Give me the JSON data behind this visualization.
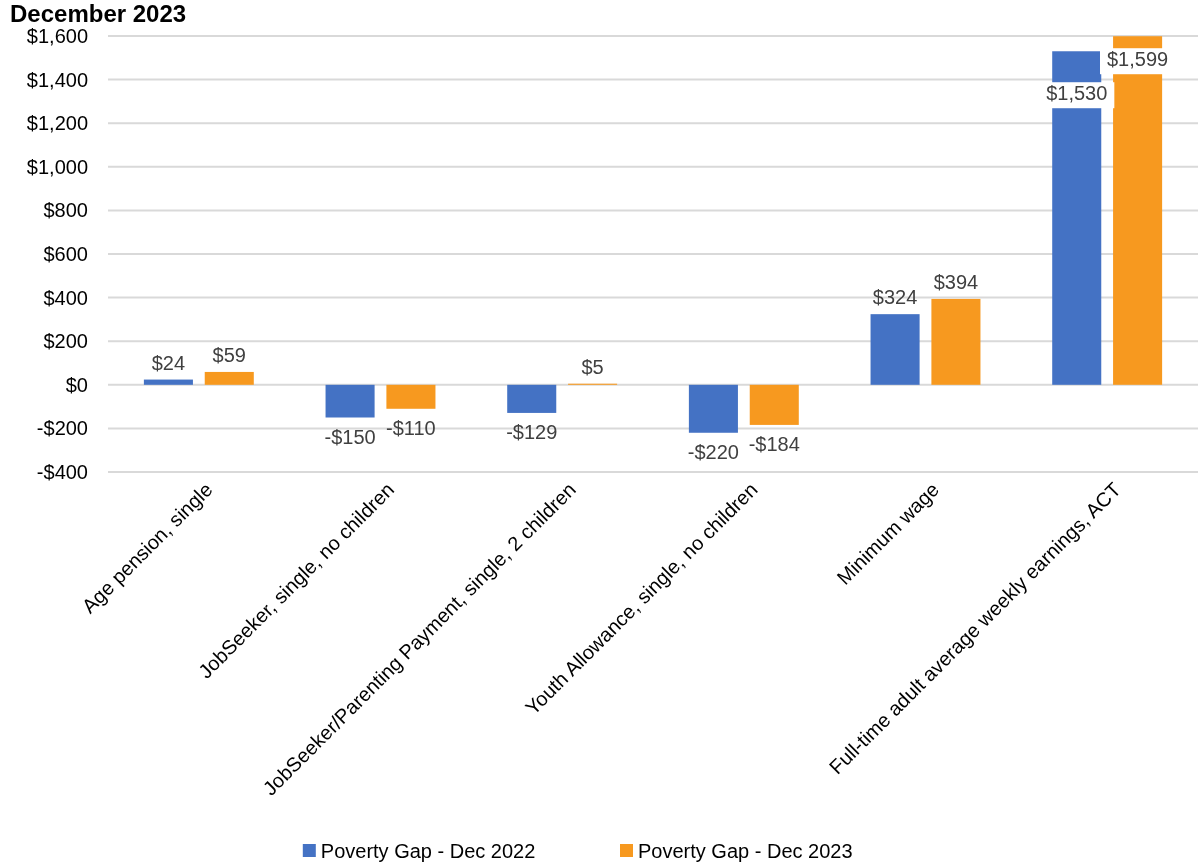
{
  "chart_data": {
    "type": "bar",
    "title": "December 2023",
    "categories": [
      "Age pension, single",
      "JobSeeker, single, no children",
      "JobSeeker/Parenting Payment, single, 2 children",
      "Youth Allowance, single, no children",
      "Minimum wage",
      "Full-time adult average weekly earnings, ACT"
    ],
    "series": [
      {
        "name": "Poverty Gap - Dec 2022",
        "color": "#4472c4",
        "values": [
          24,
          -150,
          -129,
          -220,
          324,
          1530
        ],
        "value_labels": [
          "$24",
          "-$150",
          "-$129",
          "-$220",
          "$324",
          "$1,530"
        ]
      },
      {
        "name": "Poverty Gap - Dec 2023",
        "color": "#f7991f",
        "values": [
          59,
          -110,
          5,
          -184,
          394,
          1599
        ],
        "value_labels": [
          "$59",
          "-$110",
          "$5",
          "-$184",
          "$394",
          "$1,599"
        ]
      }
    ],
    "ylim": [
      -400,
      1600
    ],
    "yticks": [
      {
        "value": -400,
        "label": "-$400"
      },
      {
        "value": -200,
        "label": "-$200"
      },
      {
        "value": 0,
        "label": "$0"
      },
      {
        "value": 200,
        "label": "$200"
      },
      {
        "value": 400,
        "label": "$400"
      },
      {
        "value": 600,
        "label": "$600"
      },
      {
        "value": 800,
        "label": "$800"
      },
      {
        "value": 1000,
        "label": "$1,000"
      },
      {
        "value": 1200,
        "label": "$1,200"
      },
      {
        "value": 1400,
        "label": "$1,400"
      },
      {
        "value": 1600,
        "label": "$1,600"
      }
    ],
    "grid": "y",
    "legend": "bottom"
  }
}
